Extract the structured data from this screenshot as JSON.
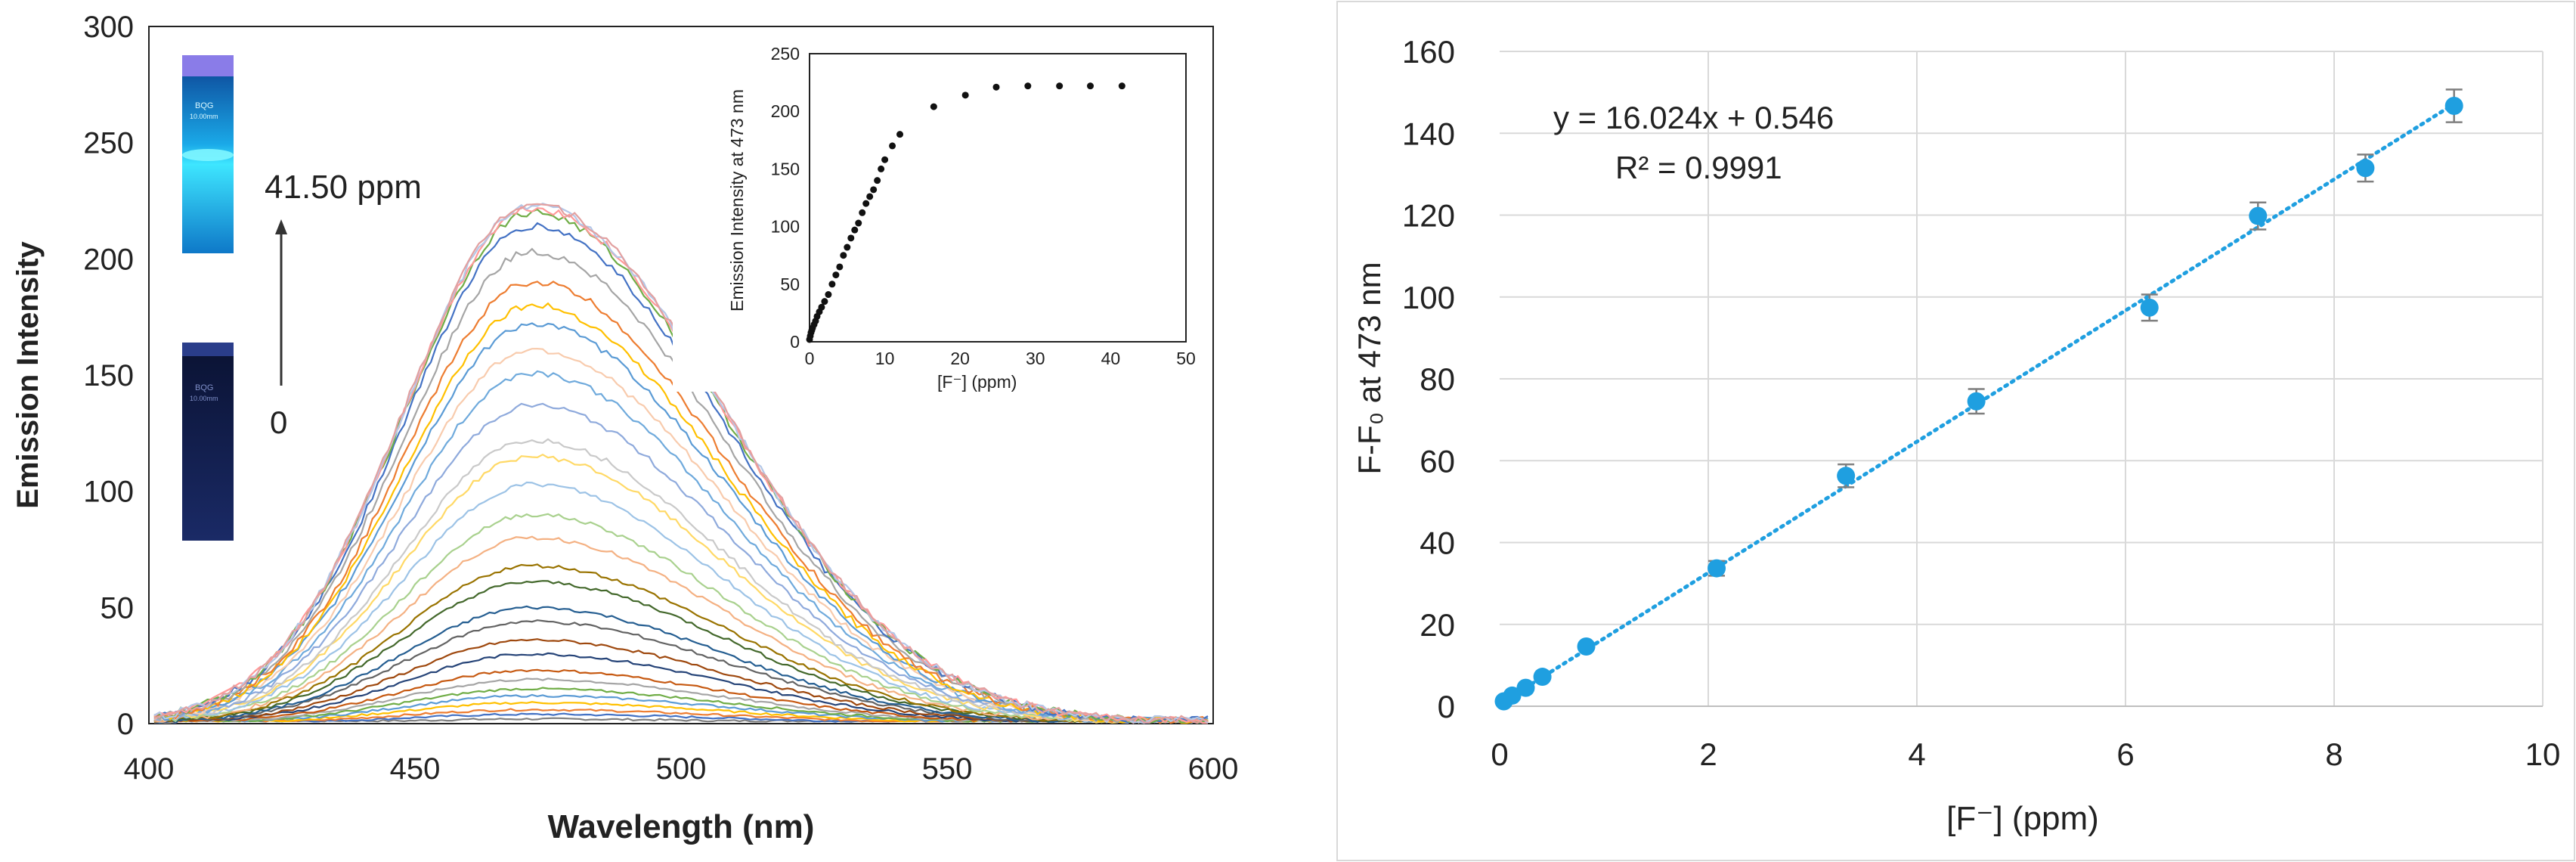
{
  "colors": {
    "axis": "#222222",
    "grid": "#d9d9d9",
    "point": "#1f9fe0",
    "fit": "#1f9fe0",
    "error": "#7f7f7f",
    "vial_glow": "#2ad8f5",
    "vial_dark": "#18264f"
  },
  "chart_data": [
    {
      "id": "emission_spectra",
      "type": "line",
      "xlabel": "Wavelength (nm)",
      "ylabel": "Emission Intensity",
      "xlim": [
        400,
        600
      ],
      "ylim": [
        0,
        300
      ],
      "xticks": [
        "400",
        "450",
        "500",
        "550",
        "600"
      ],
      "yticks": [
        "0",
        "50",
        "100",
        "150",
        "200",
        "250",
        "300"
      ],
      "grid": false,
      "peak_nm": 472,
      "series_peak_intensities": [
        2,
        4,
        6,
        9,
        12,
        15,
        19,
        23,
        30,
        36,
        44,
        50,
        61,
        68,
        80,
        90,
        103,
        115,
        122,
        137,
        151,
        161,
        172,
        180,
        190,
        203,
        214,
        220,
        222,
        223,
        224
      ],
      "series_colors": [
        "#808080",
        "#4472c4",
        "#ed7d31",
        "#ffc000",
        "#5b9bd5",
        "#70ad47",
        "#a5a5a5",
        "#c65911",
        "#264478",
        "#9e480e",
        "#636363",
        "#255e91",
        "#43682b",
        "#997300",
        "#f4b183",
        "#a9d18e",
        "#9dc3e6",
        "#ffd966",
        "#c9c9c9",
        "#8faadc",
        "#6faadc",
        "#f8cbad",
        "#5b9bd5",
        "#ffc000",
        "#ed7d31",
        "#a5a5a5",
        "#4472c4",
        "#70ad47",
        "#ff9999",
        "#b4c7e7",
        "#e2a0a0"
      ],
      "annotations": {
        "top_label": "41.50 ppm",
        "bottom_label": "0",
        "vial_label": "BQG",
        "vial_sublabel": "10.00mm"
      }
    },
    {
      "id": "inset_titration",
      "type": "scatter",
      "xlabel": "[F⁻] (ppm)",
      "ylabel": "Emission Intensity at 473 nm",
      "xlim": [
        0,
        50
      ],
      "ylim": [
        0,
        250
      ],
      "xticks": [
        "0",
        "10",
        "20",
        "30",
        "40",
        "50"
      ],
      "yticks": [
        "0",
        "50",
        "100",
        "150",
        "200",
        "250"
      ],
      "x": [
        0,
        0.1,
        0.2,
        0.3,
        0.4,
        0.6,
        0.8,
        1.0,
        1.3,
        1.6,
        2.0,
        2.5,
        3.0,
        3.5,
        4.0,
        4.5,
        5.0,
        5.5,
        6.0,
        6.5,
        7.0,
        7.5,
        8.0,
        8.5,
        9.0,
        9.5,
        10.0,
        11.0,
        12.0,
        16.5,
        20.7,
        24.8,
        29.0,
        33.2,
        37.3,
        41.5
      ],
      "y": [
        2,
        5,
        8,
        10,
        12,
        15,
        18,
        22,
        26,
        30,
        35,
        41,
        50,
        58,
        65,
        75,
        82,
        90,
        97,
        103,
        112,
        120,
        126,
        132,
        140,
        150,
        158,
        170,
        180,
        204,
        214,
        221,
        222,
        222,
        222,
        222
      ]
    },
    {
      "id": "calibration",
      "type": "scatter",
      "xlabel": "[F⁻] (ppm)",
      "ylabel": "F-F₀ at 473 nm",
      "xlim": [
        0,
        10
      ],
      "ylim": [
        0,
        160
      ],
      "xticks": [
        "0",
        "2",
        "4",
        "6",
        "8",
        "10"
      ],
      "yticks": [
        "0",
        "20",
        "40",
        "60",
        "80",
        "100",
        "120",
        "140",
        "160"
      ],
      "grid": true,
      "x": [
        0.04,
        0.12,
        0.25,
        0.41,
        0.83,
        2.08,
        3.32,
        4.57,
        6.23,
        7.27,
        8.3,
        9.15
      ],
      "y": [
        1.2,
        2.6,
        4.5,
        7.2,
        14.6,
        33.7,
        56.3,
        74.5,
        97.4,
        119.8,
        131.5,
        146.7
      ],
      "error": [
        0.8,
        0.8,
        0.9,
        1,
        1.2,
        1.8,
        2.8,
        3,
        3.2,
        3.3,
        3.3,
        4
      ],
      "fit": {
        "slope": 16.024,
        "intercept": 0.546,
        "x_range": [
          0,
          9.15
        ]
      },
      "equation": "y = 16.024x + 0.546",
      "r_squared": "R² = 0.9991"
    }
  ]
}
